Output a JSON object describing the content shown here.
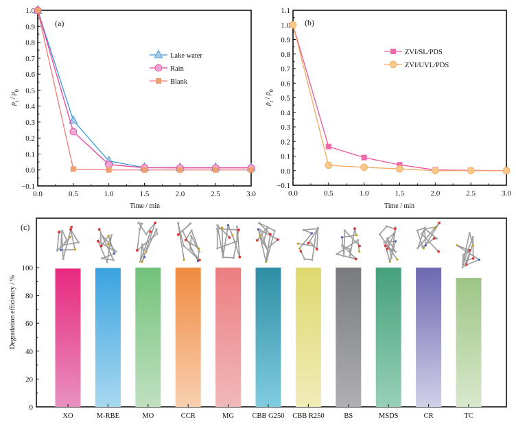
{
  "chart_data": [
    {
      "panel": "(a)",
      "type": "line",
      "xlabel": "Time / min",
      "ylabel_main": "ρ",
      "ylabel_sub1": "t",
      "ylabel_sep": " / ",
      "ylabel_sub2": "0",
      "xlim": [
        0.0,
        3.0
      ],
      "ylim": [
        -0.1,
        1.0
      ],
      "xticks": [
        "0.0",
        "0.5",
        "1.0",
        "1.5",
        "2.0",
        "2.5",
        "3.0"
      ],
      "xtick_values": [
        0,
        0.5,
        1.0,
        1.5,
        2.0,
        2.5,
        3.0
      ],
      "yticks": [
        "-0.1",
        "0.0",
        "0.1",
        "0.2",
        "0.3",
        "0.4",
        "0.5",
        "0.6",
        "0.7",
        "0.8",
        "0.9",
        "1.0"
      ],
      "ytick_values": [
        -0.1,
        0.0,
        0.1,
        0.2,
        0.3,
        0.4,
        0.5,
        0.6,
        0.7,
        0.8,
        0.9,
        1.0
      ],
      "legend_position": "upper-right",
      "x": [
        0,
        0.5,
        1.0,
        1.5,
        2.0,
        2.5,
        3.0
      ],
      "series": [
        {
          "name": "Lake water",
          "marker": "triangle",
          "line_color": "#3a9ad9",
          "marker_fill": "#a9c8e8",
          "values": [
            1.0,
            0.31,
            0.056,
            0.015,
            0.014,
            0.014,
            0.014
          ]
        },
        {
          "name": "Rain",
          "marker": "circle",
          "line_color": "#e8409a",
          "marker_fill": "#f0a8d4",
          "values": [
            1.0,
            0.24,
            0.034,
            0.014,
            0.013,
            0.013,
            0.013
          ]
        },
        {
          "name": "Blank",
          "marker": "square",
          "line_color": "#f07a7a",
          "marker_fill": "#f0a070",
          "values": [
            1.0,
            0.006,
            0.0,
            0.0,
            0.0,
            0.0,
            0.0
          ]
        }
      ]
    },
    {
      "panel": "(b)",
      "type": "line",
      "xlabel": "Time / min",
      "ylabel_main": "ρ",
      "ylabel_sub1": "t",
      "ylabel_sep": " / ",
      "ylabel_sub2": "0",
      "xlim": [
        0.0,
        3.0
      ],
      "ylim": [
        -0.1,
        1.1
      ],
      "xticks": [
        "0.0",
        "0.5",
        "1.0",
        "1.5",
        "2.0",
        "2.5",
        "3.0"
      ],
      "xtick_values": [
        0,
        0.5,
        1.0,
        1.5,
        2.0,
        2.5,
        3.0
      ],
      "yticks": [
        "-0.1",
        "0.0",
        "0.1",
        "0.2",
        "0.3",
        "0.4",
        "0.5",
        "0.6",
        "0.7",
        "0.8",
        "0.9",
        "1.0",
        "1.1"
      ],
      "ytick_values": [
        -0.1,
        0.0,
        0.1,
        0.2,
        0.3,
        0.4,
        0.5,
        0.6,
        0.7,
        0.8,
        0.9,
        1.0,
        1.1
      ],
      "legend_position": "upper-right",
      "x": [
        0,
        0.5,
        1.0,
        1.5,
        2.0,
        2.5,
        3.0
      ],
      "series": [
        {
          "name": "ZVI/SL/PDS",
          "marker": "square",
          "line_color": "#e8559a",
          "marker_fill": "#ee6aa8",
          "values": [
            1.0,
            0.165,
            0.09,
            0.04,
            0.005,
            0.002,
            0.0
          ]
        },
        {
          "name": "ZVI/UVL/PDS",
          "marker": "circle",
          "line_color": "#f4a860",
          "marker_fill": "#f8c88c",
          "values": [
            1.0,
            0.037,
            0.023,
            0.012,
            0.0,
            0.0,
            0.0
          ]
        }
      ]
    },
    {
      "panel": "(c)",
      "type": "bar",
      "xlabel": "",
      "ylabel": "Degradation efficiency / %",
      "ylim": [
        0,
        122
      ],
      "yticks": [
        "0",
        "20",
        "40",
        "60",
        "80",
        "100"
      ],
      "ytick_values": [
        0,
        20,
        40,
        60,
        80,
        100
      ],
      "categories": [
        "XO",
        "M-RBE",
        "MO",
        "CCR",
        "MG",
        "CBB G250",
        "CBB R250",
        "BS",
        "MSDS",
        "CR",
        "TC"
      ],
      "values": [
        99.3,
        99.7,
        100,
        100,
        100,
        100,
        100,
        100,
        100,
        100,
        92.6
      ],
      "bar_colors_top": [
        "#e8297f",
        "#3aa3e0",
        "#72c27a",
        "#f08a40",
        "#ec7e82",
        "#2e8ea4",
        "#e0d870",
        "#787a7e",
        "#45a07c",
        "#6e68b0",
        "#9dc585"
      ],
      "bar_colors_bottom": [
        "#e890c0",
        "#a8d8f0",
        "#c0e0c0",
        "#f8d0b0",
        "#f0b8b8",
        "#80cce0",
        "#f0ecb8",
        "#b0b0b4",
        "#98d0b8",
        "#d0d0e8",
        "#d8e8cc"
      ],
      "molecule_icons": [
        "xo-molecule",
        "m-rbe-molecule",
        "mo-molecule",
        "ccr-molecule",
        "mg-molecule",
        "cbb-g250-molecule",
        "cbb-r250-molecule",
        "bs-molecule",
        "msds-molecule",
        "cr-molecule",
        "tc-molecule"
      ]
    }
  ]
}
